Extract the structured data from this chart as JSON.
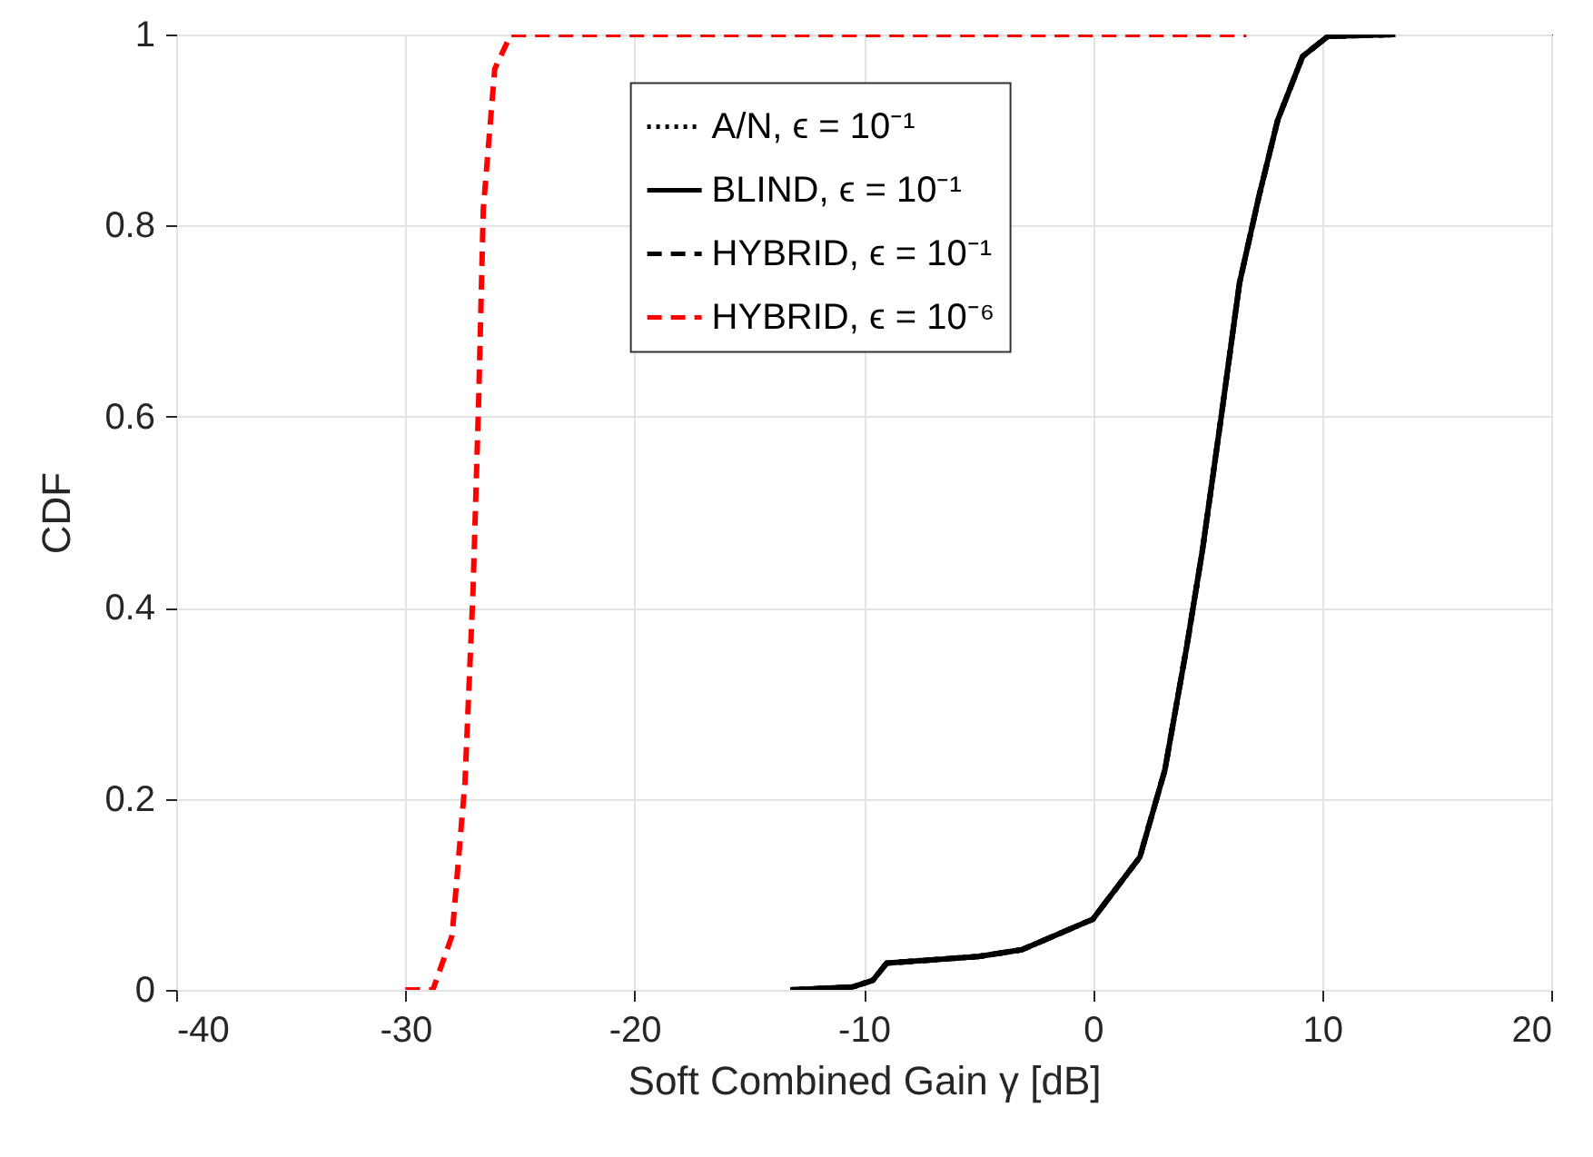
{
  "chart_data": {
    "type": "line",
    "xlabel": "Soft Combined Gain γ [dB]",
    "ylabel": "CDF",
    "xlim": [
      -40,
      20
    ],
    "xticks": [
      -40,
      -30,
      -20,
      -10,
      0,
      10,
      20
    ],
    "ylim": [
      0,
      1
    ],
    "yticks": [
      0,
      0.2,
      0.4,
      0.6,
      0.8,
      1
    ],
    "grid": true,
    "legend": "top",
    "marker": "none",
    "series": [
      {
        "name": "A/N, ϵ = 10⁻¹",
        "color": "#000000",
        "line_style": "dotted",
        "x": [
          -13.2,
          -10.5,
          -9.6,
          -9,
          -5,
          -3.1,
          0,
          2.05,
          3.14,
          4.1,
          4.78,
          5.6,
          6.4,
          7.24,
          8.06,
          9.15,
          10.25,
          13.2
        ],
        "values": [
          0,
          0.003,
          0.01,
          0.028,
          0.035,
          0.042,
          0.074,
          0.139,
          0.23,
          0.36,
          0.46,
          0.6,
          0.74,
          0.83,
          0.91,
          0.977,
          0.998,
          1
        ]
      },
      {
        "name": "BLIND, ϵ = 10⁻¹",
        "color": "#000000",
        "line_style": "solid",
        "x": [
          -13.2,
          -10.5,
          -9.6,
          -9,
          -5,
          -3.1,
          0,
          2.05,
          3.14,
          4.1,
          4.78,
          5.6,
          6.4,
          7.24,
          8.06,
          9.15,
          10.25,
          13.2
        ],
        "values": [
          0,
          0.003,
          0.01,
          0.028,
          0.035,
          0.042,
          0.074,
          0.139,
          0.23,
          0.36,
          0.46,
          0.6,
          0.74,
          0.83,
          0.91,
          0.977,
          0.998,
          1
        ]
      },
      {
        "name": "HYBRID, ϵ = 10⁻¹",
        "color": "#000000",
        "line_style": "dashed",
        "x": [
          -13.2,
          -10.5,
          -9.6,
          -9,
          -5,
          -3.1,
          0,
          2.05,
          3.14,
          4.1,
          4.78,
          5.6,
          6.4,
          7.24,
          8.06,
          9.15,
          10.25,
          13.2
        ],
        "values": [
          0,
          0.003,
          0.01,
          0.028,
          0.035,
          0.042,
          0.074,
          0.139,
          0.23,
          0.36,
          0.46,
          0.6,
          0.74,
          0.83,
          0.91,
          0.977,
          0.998,
          1
        ]
      },
      {
        "name": "HYBRID, ϵ = 10⁻⁶",
        "color": "#ff0000",
        "line_style": "dashed",
        "x": [
          -30,
          -28.8,
          -27.96,
          -27.4,
          -27.05,
          -26.8,
          -26.6,
          -26.1,
          -25.4,
          6.7
        ],
        "values": [
          0,
          0,
          0.057,
          0.217,
          0.416,
          0.618,
          0.817,
          0.964,
          1,
          1
        ]
      }
    ]
  }
}
